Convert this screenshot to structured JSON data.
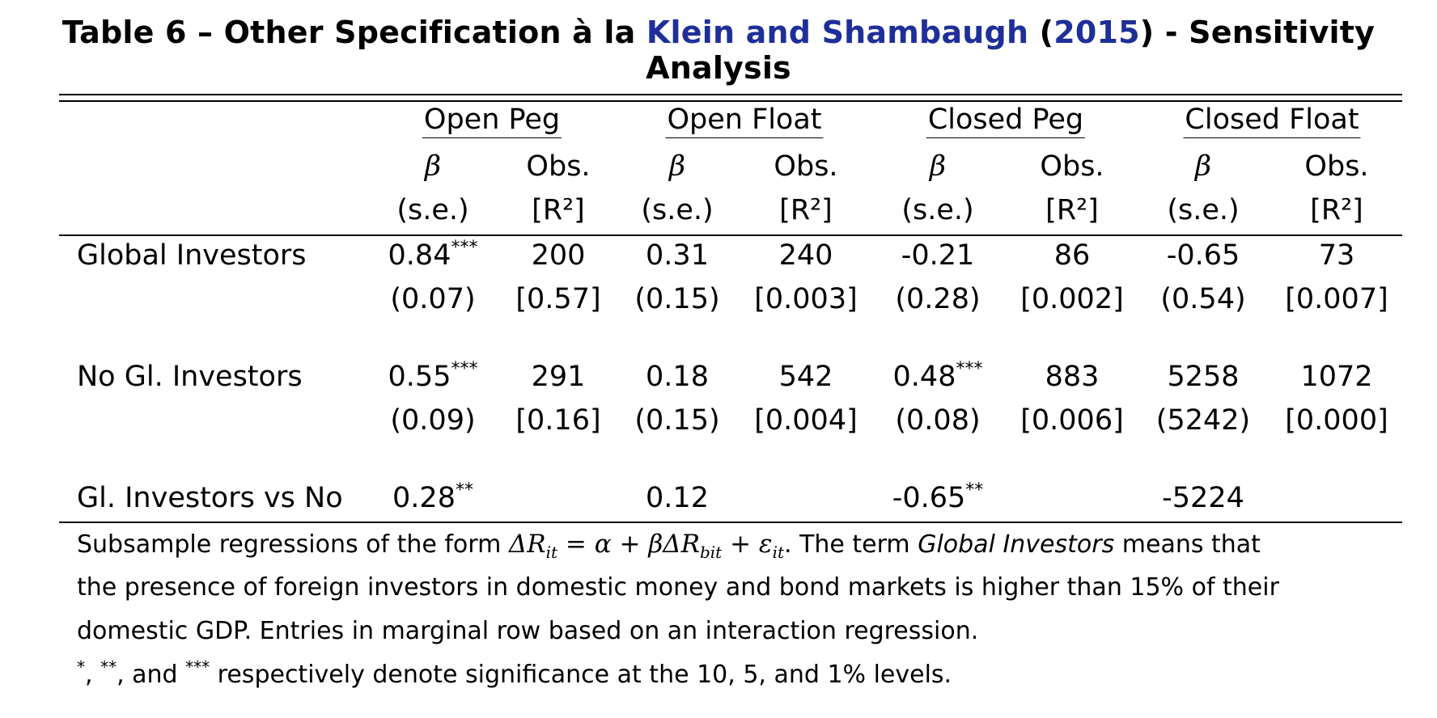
{
  "title": {
    "prefix": "Table 6 – Other Specification à la ",
    "citation_authors": "Klein and Shambaugh",
    "paren_open": " (",
    "citation_year": "2015",
    "suffix": ") - Sensitivity Analysis"
  },
  "column_groups": [
    "Open Peg",
    "Open Float",
    "Closed Peg",
    "Closed Float"
  ],
  "subheader_beta": "β",
  "subheader_obs": "Obs.",
  "subheader_se": "(s.e.)",
  "subheader_r2": "[R²]",
  "rows": [
    {
      "label": "Global Investors",
      "beta": [
        "0.84",
        "0.31",
        "-0.21",
        "-0.65"
      ],
      "stars": [
        "***",
        "",
        "",
        ""
      ],
      "obs": [
        "200",
        "240",
        "86",
        "73"
      ],
      "se": [
        "(0.07)",
        "(0.15)",
        "(0.28)",
        "(0.54)"
      ],
      "r2": [
        "[0.57]",
        "[0.003]",
        "[0.002]",
        "[0.007]"
      ]
    },
    {
      "label": "No Gl. Investors",
      "beta": [
        "0.55",
        "0.18",
        "0.48",
        "5258"
      ],
      "stars": [
        "***",
        "",
        "***",
        ""
      ],
      "obs": [
        "291",
        "542",
        "883",
        "1072"
      ],
      "se": [
        "(0.09)",
        "(0.15)",
        "(0.08)",
        "(5242)"
      ],
      "r2": [
        "[0.16]",
        "[0.004]",
        "[0.006]",
        "[0.000]"
      ]
    }
  ],
  "marginal_row": {
    "label": "Gl. Investors vs No",
    "beta": [
      "0.28",
      "0.12",
      "-0.65",
      "-5224"
    ],
    "stars": [
      "**",
      "",
      "**",
      ""
    ]
  },
  "notes": {
    "line1_a": "Subsample regressions of the form ",
    "equation": "ΔR",
    "eq_sub1": "it",
    "eq_mid": " = α + βΔR",
    "eq_sub2": "bit",
    "eq_end": " + ε",
    "eq_sub3": "it",
    "line1_b": ". The term ",
    "line1_term": "Global Investors",
    "line1_c": " means that",
    "line2": "the presence of foreign investors in domestic money and bond markets is higher than 15% of their",
    "line3": "domestic GDP. Entries in marginal row based on an interaction regression.",
    "line4_s1": "*",
    "line4_a": ", ",
    "line4_s2": "**",
    "line4_b": ", and ",
    "line4_s3": "***",
    "line4_c": " respectively denote significance at the 10, 5, and 1% levels."
  }
}
